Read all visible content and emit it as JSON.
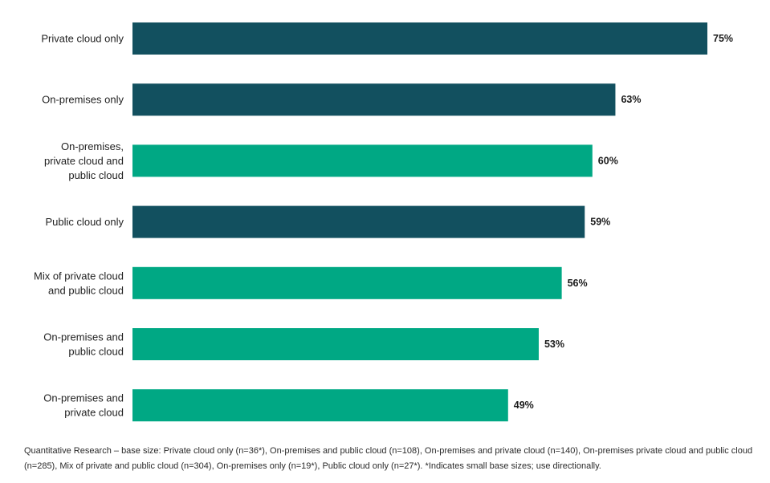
{
  "chart_data": {
    "type": "bar",
    "orientation": "horizontal",
    "categories": [
      [
        "Private cloud only"
      ],
      [
        "On-premises only"
      ],
      [
        "On-premises,",
        "private cloud and",
        "public cloud"
      ],
      [
        "Public cloud only"
      ],
      [
        "Mix of private cloud",
        "and public cloud"
      ],
      [
        "On-premises and",
        "public cloud"
      ],
      [
        "On-premises and",
        "private cloud"
      ]
    ],
    "values": [
      75,
      63,
      60,
      59,
      56,
      53,
      49
    ],
    "value_labels": [
      "75%",
      "63%",
      "60%",
      "59%",
      "56%",
      "53%",
      "49%"
    ],
    "bar_colors": [
      "#12505f",
      "#12505f",
      "#00a884",
      "#12505f",
      "#00a884",
      "#00a884",
      "#00a884"
    ],
    "xlim": [
      0,
      100
    ],
    "grid": false,
    "legend": "none"
  },
  "footnote": "Quantitative Research – base size: Private cloud only (n=36*), On-premises and public cloud (n=108), On-premises and private cloud (n=140), On-premises private cloud and public cloud (n=285), Mix of private and public cloud (n=304), On-premises only (n=19*), Public cloud only (n=27*). *Indicates small base sizes; use directionally."
}
